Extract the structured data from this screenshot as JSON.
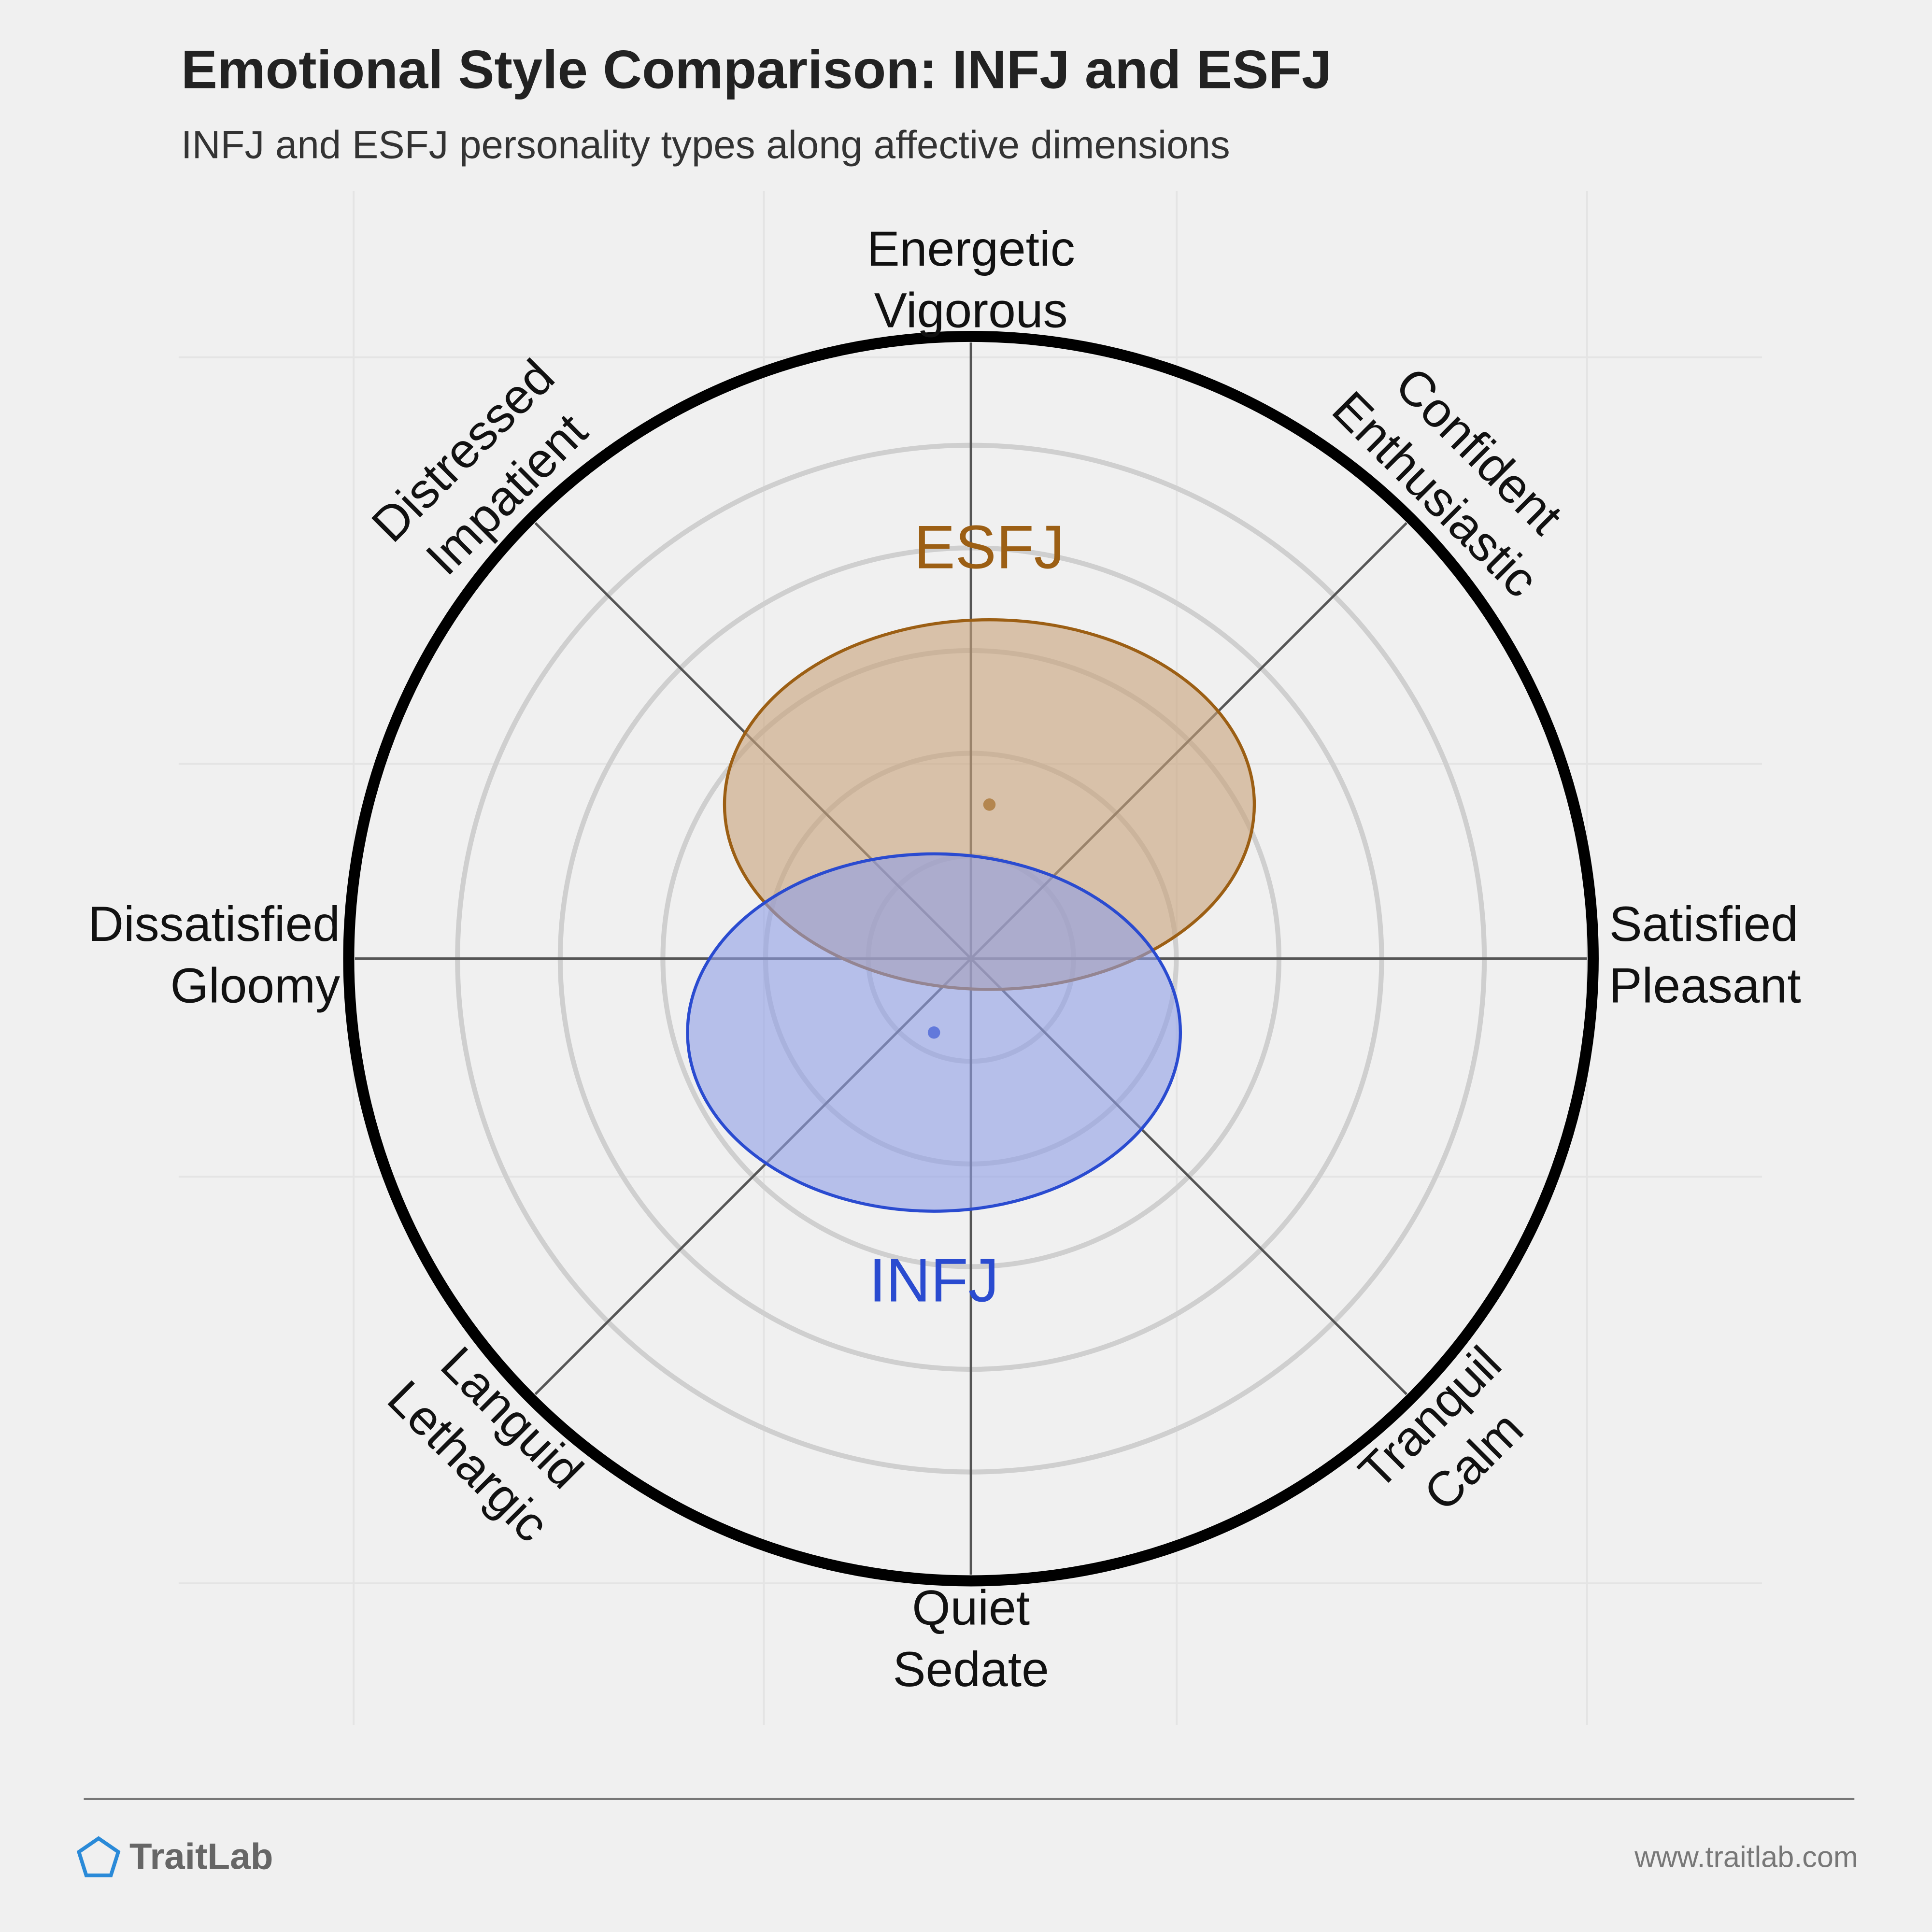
{
  "chart_data": {
    "type": "circumplex",
    "title": "Emotional Style Comparison: INFJ and ESFJ",
    "subtitle": "INFJ and ESFJ personality types along affective dimensions",
    "xlim": [
      -1,
      1
    ],
    "ylim": [
      -1,
      1
    ],
    "labels": [
      [
        "Satisfied",
        "Pleasant"
      ],
      [
        "Confident",
        "Enthusiastic"
      ],
      [
        "Energetic",
        "Vigorous"
      ],
      [
        "Distressed",
        "Impatient"
      ],
      [
        "Dissatisfied",
        "Gloomy"
      ],
      [
        "Languid",
        "Lethargic"
      ],
      [
        "Quiet",
        "Sedate"
      ],
      [
        "Tranquil",
        "Calm"
      ]
    ],
    "series": [
      {
        "name": "ESFJ",
        "color": "#9c5f14",
        "x": 0.03,
        "y": 0.25,
        "rx": 0.43,
        "ry": 0.3
      },
      {
        "name": "INFJ",
        "color": "#2a4bd0",
        "x": -0.06,
        "y": -0.12,
        "rx": 0.4,
        "ry": 0.29
      }
    ]
  },
  "footer": {
    "brand": "TraitLab",
    "url": "www.traitlab.com"
  }
}
